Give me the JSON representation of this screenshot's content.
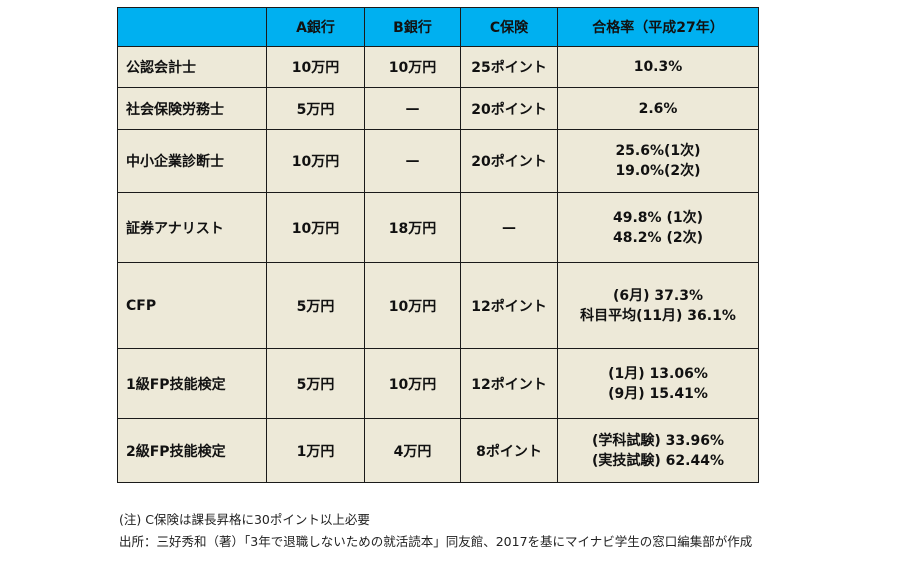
{
  "table": {
    "headers": [
      "",
      "A銀行",
      "B銀行",
      "C保険",
      "合格率（平成27年）"
    ],
    "rows": [
      {
        "name": "公認会計士",
        "a": "10万円",
        "b": "10万円",
        "c": "25ポイント",
        "rate": [
          "10.3%"
        ]
      },
      {
        "name": "社会保険労務士",
        "a": "5万円",
        "b": "—",
        "c": "20ポイント",
        "rate": [
          "2.6%"
        ]
      },
      {
        "name": "中小企業診断士",
        "a": "10万円",
        "b": "—",
        "c": "20ポイント",
        "rate": [
          "25.6%(1次)",
          "19.0%(2次)"
        ]
      },
      {
        "name": "証券アナリスト",
        "a": "10万円",
        "b": "18万円",
        "c": "—",
        "rate": [
          "49.8% (1次)",
          "48.2% (2次)"
        ]
      },
      {
        "name": "CFP",
        "a": "5万円",
        "b": "10万円",
        "c": "12ポイント",
        "rate": [
          "(6月) 37.3%",
          "科目平均(11月) 36.1%"
        ]
      },
      {
        "name": "1級FP技能検定",
        "a": "5万円",
        "b": "10万円",
        "c": "12ポイント",
        "rate": [
          "(1月) 13.06%",
          "(9月) 15.41%"
        ]
      },
      {
        "name": "2級FP技能検定",
        "a": "1万円",
        "b": "4万円",
        "c": "8ポイント",
        "rate": [
          "(学科試験) 33.96%",
          "(実技試験) 62.44%"
        ]
      }
    ]
  },
  "notes": {
    "note": "(注) C保険は課長昇格に30ポイント以上必要",
    "source": "出所：三好秀和（著）「3年で退職しないための就活読本」同友館、2017を基にマイナビ学生の窓口編集部が作成"
  }
}
